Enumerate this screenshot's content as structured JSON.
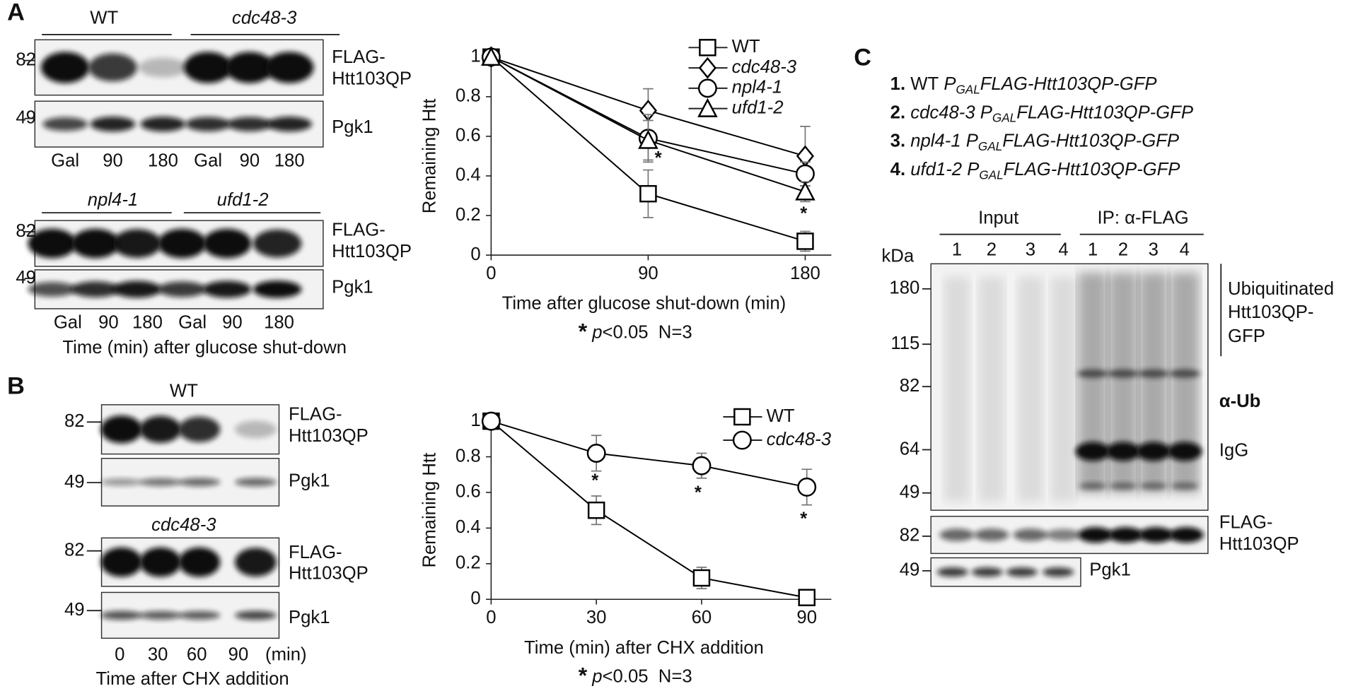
{
  "panel_labels": [
    "A",
    "B",
    "C"
  ],
  "blots_a": {
    "strains": [
      "WT",
      "cdc48-3",
      "npl4-1",
      "ufd1-2"
    ],
    "markers": [
      "82",
      "49"
    ],
    "proteins": [
      "FLAG-",
      "Htt103QP",
      "Pgk1"
    ],
    "lanes": [
      "Gal",
      "90",
      "180"
    ],
    "xlabel": "Time (min) after glucose shut-down"
  },
  "blots_b": {
    "strains": [
      "WT",
      "cdc48-3"
    ],
    "markers": [
      "82",
      "49"
    ],
    "proteins": [
      "FLAG-",
      "Htt103QP",
      "Pgk1"
    ],
    "lanes": [
      "0",
      "30",
      "60",
      "90"
    ],
    "unit": "(min)",
    "xlabel": "Time after CHX addition"
  },
  "panel_c": {
    "legend": [
      {
        "num": "1.",
        "strain": "WT",
        "strain_italic": false,
        "p": "P",
        "sub": "GAL",
        "construct": "FLAG-Htt103QP-GFP"
      },
      {
        "num": "2.",
        "strain": "cdc48-3",
        "strain_italic": true,
        "p": "P",
        "sub": "GAL",
        "construct": "FLAG-Htt103QP-GFP"
      },
      {
        "num": "3.",
        "strain": "npl4-1",
        "strain_italic": true,
        "p": "P",
        "sub": "GAL",
        "construct": "FLAG-Htt103QP-GFP"
      },
      {
        "num": "4.",
        "strain": "ufd1-2",
        "strain_italic": true,
        "p": "P",
        "sub": "GAL",
        "construct": "FLAG-Htt103QP-GFP"
      }
    ],
    "groups": [
      "Input",
      "IP: α-FLAG"
    ],
    "lanes": [
      "1",
      "2",
      "3",
      "4"
    ],
    "kda": "kDa",
    "markers": [
      "180",
      "115",
      "82",
      "64",
      "49"
    ],
    "bottom_markers": [
      "82",
      "49"
    ],
    "ub_label": [
      "Ubiquitinated",
      "Htt103QP-",
      "GFP"
    ],
    "antibody": "α-Ub",
    "igg": "IgG",
    "flag_label": [
      "FLAG-",
      "Htt103QP"
    ],
    "pgk": "Pgk1"
  },
  "chart_data": [
    {
      "type": "line",
      "ylabel": "Remaining Htt",
      "xlabel": "Time after glucose shut-down (min)",
      "note": {
        "star": "*",
        "p": "p",
        "rest": "<0.05  N=3"
      },
      "x": [
        0,
        90,
        180
      ],
      "xlim": [
        0,
        195
      ],
      "xticks": [
        0,
        90,
        180
      ],
      "ylim": [
        0,
        1
      ],
      "yticks": [
        0,
        0.2,
        0.4,
        0.6,
        0.8,
        1
      ],
      "legend": "top-right",
      "series": [
        {
          "name": "WT",
          "font_style": "normal",
          "marker": "square",
          "color": "#000000",
          "values": [
            1,
            0.31,
            0.07
          ],
          "errors": [
            0,
            0.12,
            0.05
          ]
        },
        {
          "name": "cdc48-3",
          "font_style": "italic",
          "marker": "diamond",
          "color": "#000000",
          "values": [
            1,
            0.73,
            0.5
          ],
          "errors": [
            0,
            0.11,
            0.15
          ]
        },
        {
          "name": "npl4-1",
          "font_style": "italic",
          "marker": "circle",
          "color": "#000000",
          "values": [
            1,
            0.59,
            0.41
          ],
          "errors": [
            0,
            0.12,
            0.06
          ]
        },
        {
          "name": "ufd1-2",
          "font_style": "italic",
          "marker": "triangle",
          "color": "#000000",
          "values": [
            1,
            0.58,
            0.32
          ],
          "errors": [
            0,
            0.1,
            0.05
          ]
        }
      ],
      "annotations": [
        {
          "text": "*",
          "x": 90
        },
        {
          "text": "*",
          "x": 180
        }
      ]
    },
    {
      "type": "line",
      "ylabel": "Remaining Htt",
      "xlabel": "Time (min) after CHX addition",
      "note": {
        "star": "*",
        "p": "p",
        "rest": "<0.05  N=3"
      },
      "x": [
        0,
        30,
        60,
        90
      ],
      "xlim": [
        0,
        97
      ],
      "xticks": [
        0,
        30,
        60,
        90
      ],
      "ylim": [
        0,
        1
      ],
      "yticks": [
        0,
        0.2,
        0.4,
        0.6,
        0.8,
        1
      ],
      "legend": "top-right",
      "series": [
        {
          "name": "WT",
          "font_style": "normal",
          "marker": "square",
          "color": "#000000",
          "values": [
            1,
            0.5,
            0.12,
            0.01
          ],
          "errors": [
            0,
            0.08,
            0.06,
            0
          ]
        },
        {
          "name": "cdc48-3",
          "font_style": "italic",
          "marker": "circle",
          "color": "#000000",
          "values": [
            1,
            0.82,
            0.75,
            0.63
          ],
          "errors": [
            0,
            0.1,
            0.07,
            0.1
          ]
        }
      ],
      "annotations": [
        {
          "text": "*",
          "x": 30
        },
        {
          "text": "*",
          "x": 60
        },
        {
          "text": "*",
          "x": 90
        }
      ]
    }
  ]
}
